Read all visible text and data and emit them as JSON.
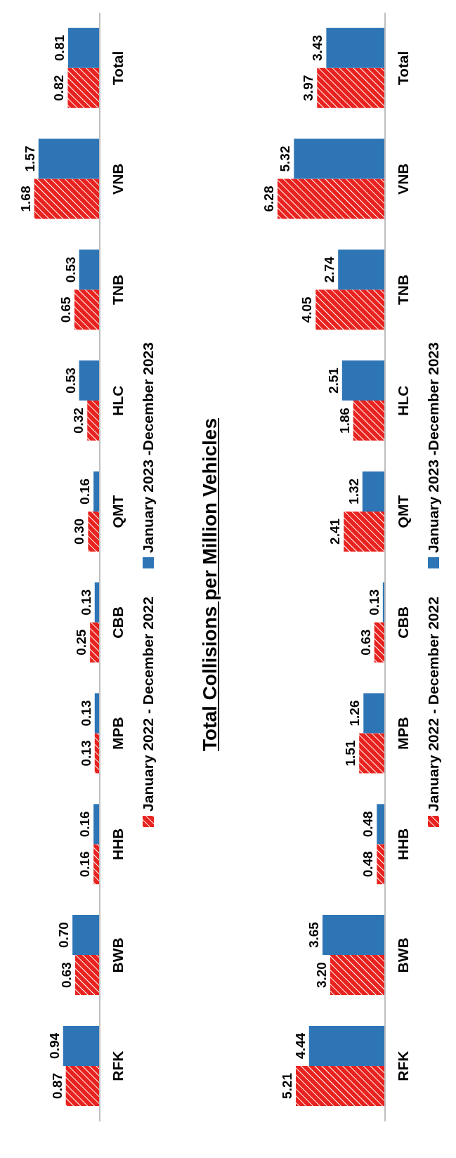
{
  "chart_data": [
    {
      "type": "bar",
      "orientation": "horizontal",
      "categories": [
        "Total",
        "VNB",
        "TNB",
        "HLC",
        "QMT",
        "CBB",
        "MPB",
        "HHB",
        "BWB",
        "RFK"
      ],
      "legend": "bottom",
      "series": [
        {
          "name": "January 2022 - December 2022",
          "color": "#e8231f",
          "values": [
            0.82,
            1.68,
            0.65,
            0.32,
            0.3,
            0.25,
            0.13,
            0.16,
            0.63,
            0.87
          ],
          "value_labels": [
            "0.82",
            "1.68",
            "0.65",
            "0.32",
            "0.30",
            "0.25",
            "0.13",
            "0.16",
            "0.63",
            "0.87"
          ]
        },
        {
          "name": "January 2023 -December 2023",
          "color": "#2e75b6",
          "values": [
            0.81,
            1.57,
            0.53,
            0.53,
            0.16,
            0.13,
            0.13,
            0.16,
            0.7,
            0.94
          ],
          "value_labels": [
            "0.81",
            "1.57",
            "0.53",
            "0.53",
            "0.16",
            "0.13",
            "0.13",
            "0.16",
            "0.70",
            "0.94"
          ]
        }
      ]
    },
    {
      "type": "bar",
      "orientation": "horizontal",
      "title": "Total Collisions per Million Vehicles",
      "categories": [
        "Total",
        "VNB",
        "TNB",
        "HLC",
        "QMT",
        "CBB",
        "MPB",
        "HHB",
        "BWB",
        "RFK"
      ],
      "legend": "bottom",
      "series": [
        {
          "name": "January 2022 - December 2022",
          "color": "#e8231f",
          "values": [
            3.97,
            6.28,
            4.05,
            1.86,
            2.41,
            0.63,
            1.51,
            0.48,
            3.2,
            5.21
          ],
          "value_labels": [
            "3.97",
            "6.28",
            "4.05",
            "1.86",
            "2.41",
            "0.63",
            "1.51",
            "0.48",
            "3.20",
            "5.21"
          ]
        },
        {
          "name": "January 2023 -December 2023",
          "color": "#2e75b6",
          "values": [
            3.43,
            5.32,
            2.74,
            2.51,
            1.32,
            0.13,
            1.26,
            0.48,
            3.65,
            4.44
          ],
          "value_labels": [
            "3.43",
            "5.32",
            "2.74",
            "2.51",
            "1.32",
            "0.13",
            "1.26",
            "0.48",
            "3.65",
            "4.44"
          ]
        }
      ]
    }
  ]
}
